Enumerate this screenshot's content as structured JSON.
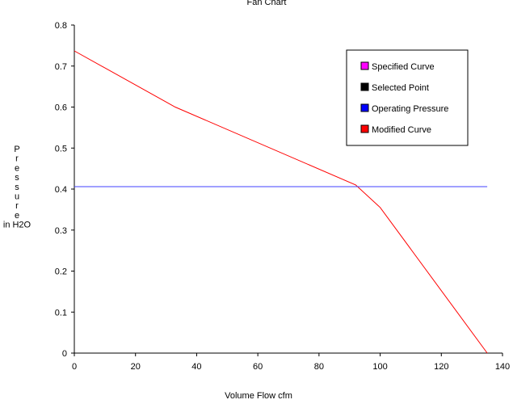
{
  "chart_data": {
    "type": "line",
    "title": "Fan Chart",
    "xlabel": "Volume Flow cfm",
    "ylabel": [
      "P",
      "r",
      "e",
      "s",
      "s",
      "u",
      "r",
      "e",
      "in H2O"
    ],
    "xlim": [
      0,
      140
    ],
    "ylim": [
      0,
      0.8
    ],
    "x_ticks": [
      0,
      20,
      40,
      60,
      80,
      100,
      120,
      140
    ],
    "y_ticks": [
      0,
      0.1,
      0.2,
      0.3,
      0.4,
      0.5,
      0.6,
      0.7,
      0.8
    ],
    "x_tick_labels": [
      "0",
      "20",
      "40",
      "60",
      "80",
      "100",
      "120",
      "140"
    ],
    "y_tick_labels": [
      "0",
      "0.1",
      "0.2",
      "0.3",
      "0.4",
      "0.5",
      "0.6",
      "0.7",
      "0.8"
    ],
    "grid": false,
    "legend_position": "top-right",
    "legend": [
      {
        "label": "Specified Curve",
        "color": "#ff00ff"
      },
      {
        "label": "Selected Point",
        "color": "#000000"
      },
      {
        "label": "Operating Pressure",
        "color": "#0000ff"
      },
      {
        "label": "Modified Curve",
        "color": "#ff0000"
      }
    ],
    "series": [
      {
        "name": "Modified Curve",
        "color": "#ff0000",
        "x": [
          0,
          33,
          92,
          100,
          135
        ],
        "y": [
          0.737,
          0.6,
          0.41,
          0.355,
          0
        ]
      },
      {
        "name": "Operating Pressure",
        "color": "#4040ff",
        "x": [
          0,
          135
        ],
        "y": [
          0.406,
          0.406
        ]
      }
    ]
  }
}
